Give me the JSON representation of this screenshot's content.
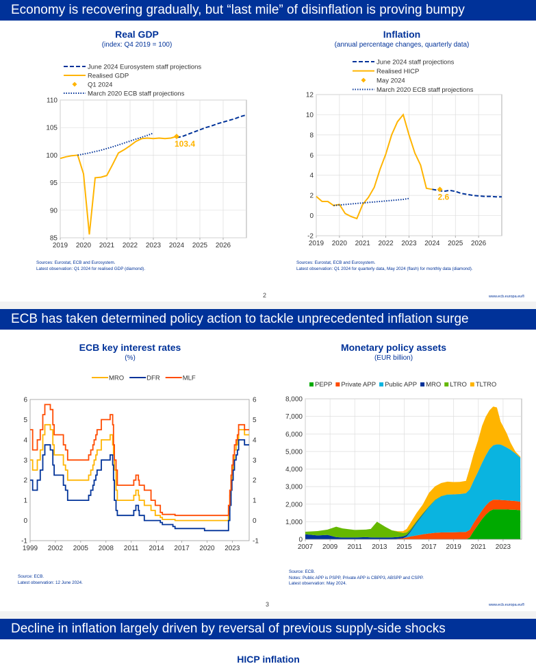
{
  "slides": [
    {
      "title": "Economy is recovering gradually, but “last mile” of disinflation is proving bumpy",
      "page": "2",
      "url": "www.ecb.europa.eu®"
    },
    {
      "title": "ECB has taken determined policy action to tackle unprecedented inflation surge",
      "page": "3",
      "url": "www.ecb.europa.eu®"
    },
    {
      "title": "Decline in inflation largely driven by reversal of previous supply-side shocks"
    }
  ],
  "charts": {
    "gdp": {
      "title": "Real GDP",
      "subtitle": "(index: Q4 2019 = 100)",
      "notes": [
        "Sources: Eurostat, ECB and Eurosystem.",
        "Latest observation: Q1 2024 for realised GDP (diamond)."
      ]
    },
    "infl": {
      "title": "Inflation",
      "subtitle": "(annual percentage changes, quarterly data)",
      "notes": [
        "Sources: Eurostat, ECB and Eurosystem.",
        "Latest observation: Q1 2024 for quarterly data, May 2024 (flash) for monthly data (diamond)."
      ]
    },
    "rates": {
      "title": "ECB key interest rates",
      "subtitle": "(%)",
      "notes": [
        "Source: ECB.",
        "Latest observation: 12 June 2024."
      ]
    },
    "assets": {
      "title": "Monetary policy assets",
      "subtitle": "(EUR billion)",
      "notes": [
        "Source: ECB.",
        "Notes: Public APP is PSPP, Private APP is CBPP3, ABSPP and CSPP.",
        "Latest observation: May 2024."
      ]
    },
    "hicp": {
      "title": "HICP inflation"
    }
  },
  "chart_data": [
    {
      "id": "gdp",
      "type": "line",
      "title": "Real GDP",
      "subtitle": "(index: Q4 2019 = 100)",
      "ylim": [
        85,
        110
      ],
      "yticks": [
        85,
        90,
        95,
        100,
        105,
        110
      ],
      "xlim": [
        2019,
        2027
      ],
      "xticks": [
        2019,
        2020,
        2021,
        2022,
        2023,
        2024,
        2025,
        2026
      ],
      "grid": true,
      "legend_position": "top-left",
      "series": [
        {
          "name": "June 2024 Eurosystem staff projections",
          "color": "#003299",
          "style": "dashed",
          "x": [
            2024.0,
            2024.25,
            2024.5,
            2024.75,
            2025.0,
            2025.25,
            2025.5,
            2025.75,
            2026.0,
            2026.25,
            2026.5,
            2026.75,
            2027.0
          ],
          "y": [
            103.2,
            103.4,
            103.8,
            104.2,
            104.6,
            105.0,
            105.3,
            105.7,
            106.0,
            106.3,
            106.6,
            107.0,
            107.3
          ]
        },
        {
          "name": "Realised GDP",
          "color": "#ffb400",
          "style": "solid",
          "x": [
            2019.0,
            2019.25,
            2019.5,
            2019.75,
            2020.0,
            2020.25,
            2020.5,
            2020.75,
            2021.0,
            2021.25,
            2021.5,
            2021.75,
            2022.0,
            2022.25,
            2022.5,
            2022.75,
            2023.0,
            2023.25,
            2023.5,
            2023.75,
            2024.0
          ],
          "y": [
            99.4,
            99.7,
            99.9,
            100.0,
            96.6,
            85.6,
            95.9,
            96.0,
            96.3,
            98.3,
            100.4,
            101.0,
            101.7,
            102.5,
            103.0,
            103.1,
            103.0,
            103.1,
            103.0,
            103.1,
            103.4
          ]
        },
        {
          "name": "Q1 2024",
          "color": "#ffb400",
          "style": "diamond",
          "x": [
            2024.0
          ],
          "y": [
            103.4
          ],
          "label": "103.4"
        },
        {
          "name": "March 2020 ECB staff projections",
          "color": "#003299",
          "style": "dotted",
          "x": [
            2019.75,
            2020.25,
            2020.75,
            2021.25,
            2021.75,
            2022.25,
            2022.75,
            2023.0
          ],
          "y": [
            100.0,
            100.4,
            100.9,
            101.5,
            102.2,
            102.9,
            103.6,
            104.0
          ]
        }
      ]
    },
    {
      "id": "infl",
      "type": "line",
      "title": "Inflation",
      "subtitle": "(annual percentage changes, quarterly data)",
      "ylim": [
        -2,
        12
      ],
      "yticks": [
        -2,
        0,
        2,
        4,
        6,
        8,
        10,
        12
      ],
      "xlim": [
        2019,
        2027
      ],
      "xticks": [
        2019,
        2020,
        2021,
        2022,
        2023,
        2024,
        2025,
        2026
      ],
      "grid": true,
      "legend_position": "top",
      "series": [
        {
          "name": "June 2024 staff projections",
          "color": "#003299",
          "style": "dashed",
          "x": [
            2024.0,
            2024.25,
            2024.5,
            2024.75,
            2025.0,
            2025.25,
            2025.5,
            2025.75,
            2026.0,
            2026.25,
            2026.5,
            2026.75,
            2027.0
          ],
          "y": [
            2.6,
            2.5,
            2.4,
            2.5,
            2.4,
            2.2,
            2.1,
            2.0,
            1.95,
            1.9,
            1.9,
            1.85,
            1.85
          ]
        },
        {
          "name": "Realised HICP",
          "color": "#ffb400",
          "style": "solid",
          "x": [
            2019.0,
            2019.25,
            2019.5,
            2019.75,
            2020.0,
            2020.25,
            2020.5,
            2020.75,
            2021.0,
            2021.25,
            2021.5,
            2021.75,
            2022.0,
            2022.25,
            2022.5,
            2022.75,
            2023.0,
            2023.25,
            2023.5,
            2023.75,
            2024.0
          ],
          "y": [
            1.9,
            1.4,
            1.4,
            1.0,
            1.1,
            0.2,
            -0.1,
            -0.3,
            1.1,
            1.8,
            2.8,
            4.6,
            6.1,
            8.0,
            9.3,
            10.0,
            8.0,
            6.2,
            5.0,
            2.7,
            2.6
          ]
        },
        {
          "name": "May 2024",
          "color": "#ffb400",
          "style": "diamond",
          "x": [
            2024.33
          ],
          "y": [
            2.6
          ],
          "label": "2.6"
        },
        {
          "name": "March 2020 ECB staff projections",
          "color": "#003299",
          "style": "dotted",
          "x": [
            2019.75,
            2020.25,
            2020.75,
            2021.25,
            2021.75,
            2022.25,
            2022.75,
            2023.0
          ],
          "y": [
            1.0,
            1.1,
            1.2,
            1.3,
            1.4,
            1.5,
            1.6,
            1.7
          ]
        }
      ]
    },
    {
      "id": "rates",
      "type": "line",
      "title": "ECB key interest rates",
      "subtitle": "(%)",
      "ylim": [
        -1,
        6
      ],
      "yticks": [
        -1,
        0,
        1,
        2,
        3,
        4,
        5,
        6
      ],
      "xlim": [
        1999,
        2025
      ],
      "xticks": [
        1999,
        2002,
        2005,
        2008,
        2011,
        2014,
        2017,
        2020,
        2023
      ],
      "grid": false,
      "legend_position": "top",
      "series": [
        {
          "name": "MRO",
          "color": "#ffb400",
          "style": "step",
          "x": [
            1999.0,
            1999.3,
            1999.85,
            2000.2,
            2000.5,
            2000.75,
            2001.4,
            2001.7,
            2001.85,
            2002.95,
            2003.2,
            2003.45,
            2005.95,
            2006.2,
            2006.45,
            2006.6,
            2006.8,
            2006.95,
            2007.45,
            2008.5,
            2008.8,
            2008.9,
            2009.0,
            2009.2,
            2009.35,
            2011.3,
            2011.55,
            2011.85,
            2011.95,
            2012.55,
            2013.35,
            2013.85,
            2014.45,
            2014.7,
            2016.2,
            2022.55,
            2022.7,
            2022.85,
            2022.95,
            2023.1,
            2023.25,
            2023.45,
            2023.6,
            2023.75,
            2024.45,
            2025.0
          ],
          "y": [
            3.0,
            2.5,
            3.0,
            3.5,
            4.25,
            4.75,
            4.5,
            3.75,
            3.25,
            2.75,
            2.5,
            2.0,
            2.25,
            2.5,
            2.75,
            3.0,
            3.25,
            3.5,
            4.0,
            4.25,
            3.75,
            3.25,
            2.5,
            1.5,
            1.0,
            1.25,
            1.5,
            1.25,
            1.0,
            0.75,
            0.5,
            0.25,
            0.15,
            0.05,
            0.0,
            0.5,
            1.25,
            2.0,
            2.5,
            3.0,
            3.5,
            3.75,
            4.0,
            4.5,
            4.25,
            4.25
          ]
        },
        {
          "name": "DFR",
          "color": "#003299",
          "style": "step",
          "x": [
            1999.0,
            1999.3,
            1999.85,
            2000.2,
            2000.5,
            2000.75,
            2001.4,
            2001.7,
            2001.85,
            2002.95,
            2003.2,
            2003.45,
            2005.95,
            2006.2,
            2006.45,
            2006.6,
            2006.8,
            2006.95,
            2007.45,
            2008.5,
            2008.8,
            2008.9,
            2009.0,
            2009.2,
            2009.35,
            2011.3,
            2011.55,
            2011.85,
            2011.95,
            2012.55,
            2014.45,
            2014.7,
            2015.95,
            2016.2,
            2019.7,
            2022.55,
            2022.7,
            2022.85,
            2022.95,
            2023.1,
            2023.25,
            2023.45,
            2023.6,
            2023.75,
            2024.45,
            2025.0
          ],
          "y": [
            2.0,
            1.5,
            2.0,
            2.5,
            3.25,
            3.75,
            3.5,
            2.75,
            2.25,
            1.75,
            1.5,
            1.0,
            1.25,
            1.5,
            1.75,
            2.0,
            2.25,
            2.5,
            3.0,
            3.25,
            2.75,
            2.0,
            1.0,
            0.5,
            0.25,
            0.5,
            0.75,
            0.5,
            0.25,
            0.0,
            -0.1,
            -0.2,
            -0.3,
            -0.4,
            -0.5,
            0.0,
            0.75,
            1.5,
            2.0,
            2.5,
            3.0,
            3.25,
            3.5,
            4.0,
            3.75,
            3.75
          ]
        },
        {
          "name": "MLF",
          "color": "#ff4b00",
          "style": "step",
          "x": [
            1999.0,
            1999.3,
            1999.85,
            2000.2,
            2000.5,
            2000.75,
            2001.4,
            2001.7,
            2001.85,
            2002.95,
            2003.2,
            2003.45,
            2005.95,
            2006.2,
            2006.45,
            2006.6,
            2006.8,
            2006.95,
            2007.45,
            2008.5,
            2008.8,
            2008.9,
            2009.0,
            2009.2,
            2009.35,
            2011.3,
            2011.55,
            2011.85,
            2011.95,
            2012.55,
            2013.35,
            2013.85,
            2014.45,
            2014.7,
            2016.2,
            2022.55,
            2022.7,
            2022.85,
            2022.95,
            2023.1,
            2023.25,
            2023.45,
            2023.6,
            2023.75,
            2024.45,
            2025.0
          ],
          "y": [
            4.5,
            3.5,
            4.0,
            4.5,
            5.25,
            5.75,
            5.5,
            4.75,
            4.25,
            3.75,
            3.5,
            3.0,
            3.25,
            3.5,
            3.75,
            4.0,
            4.25,
            4.5,
            5.0,
            5.25,
            4.75,
            3.75,
            3.0,
            2.5,
            1.75,
            2.0,
            2.25,
            2.0,
            1.75,
            1.5,
            1.0,
            0.75,
            0.4,
            0.3,
            0.25,
            0.75,
            1.5,
            2.25,
            2.75,
            3.25,
            3.75,
            4.0,
            4.25,
            4.75,
            4.5,
            4.5
          ]
        }
      ]
    },
    {
      "id": "assets",
      "type": "area",
      "title": "Monetary policy assets",
      "subtitle": "(EUR billion)",
      "ylim": [
        0,
        8000
      ],
      "yticks": [
        0,
        1000,
        2000,
        3000,
        4000,
        5000,
        6000,
        7000,
        8000
      ],
      "ytick_labels": [
        "0",
        "1,000",
        "2,000",
        "3,000",
        "4,000",
        "5,000",
        "6,000",
        "7,000",
        "8,000"
      ],
      "xlim": [
        2007,
        2024.5
      ],
      "xticks": [
        2007,
        2009,
        2011,
        2013,
        2015,
        2017,
        2019,
        2021,
        2023
      ],
      "grid": true,
      "legend_position": "top",
      "stacked": true,
      "x": [
        2007.0,
        2008.0,
        2008.8,
        2009.5,
        2010.0,
        2011.0,
        2011.9,
        2012.3,
        2012.8,
        2013.5,
        2014.0,
        2014.5,
        2014.9,
        2015.2,
        2015.5,
        2016.0,
        2016.5,
        2017.0,
        2017.5,
        2018.0,
        2018.5,
        2019.0,
        2019.5,
        2020.0,
        2020.3,
        2020.6,
        2021.0,
        2021.3,
        2021.6,
        2021.9,
        2022.2,
        2022.5,
        2022.8,
        2023.0,
        2023.3,
        2023.6,
        2024.0,
        2024.4
      ],
      "series": [
        {
          "name": "PEPP",
          "color": "#00aa00",
          "values": [
            0,
            0,
            0,
            0,
            0,
            0,
            0,
            0,
            0,
            0,
            0,
            0,
            0,
            0,
            0,
            0,
            0,
            0,
            0,
            0,
            0,
            0,
            0,
            0,
            100,
            450,
            850,
            1150,
            1400,
            1600,
            1700,
            1700,
            1700,
            1700,
            1700,
            1690,
            1680,
            1650
          ]
        },
        {
          "name": "Private APP",
          "color": "#ff4b00",
          "values": [
            0,
            0,
            0,
            0,
            0,
            0,
            0,
            0,
            0,
            0,
            0,
            30,
            60,
            110,
            160,
            220,
            280,
            330,
            370,
            390,
            395,
            400,
            410,
            420,
            440,
            460,
            480,
            500,
            520,
            540,
            550,
            550,
            540,
            530,
            520,
            510,
            500,
            490
          ]
        },
        {
          "name": "Public APP",
          "color": "#0ab4e0",
          "values": [
            0,
            0,
            0,
            0,
            0,
            0,
            0,
            0,
            0,
            0,
            0,
            0,
            0,
            50,
            250,
            700,
            1100,
            1500,
            1850,
            2050,
            2150,
            2150,
            2160,
            2200,
            2300,
            2400,
            2550,
            2700,
            2850,
            3000,
            3100,
            3150,
            3150,
            3100,
            3000,
            2900,
            2700,
            2500
          ]
        },
        {
          "name": "MRO",
          "color": "#003299",
          "values": [
            280,
            220,
            250,
            120,
            100,
            100,
            120,
            110,
            100,
            100,
            110,
            100,
            100,
            80,
            70,
            50,
            40,
            20,
            10,
            5,
            5,
            5,
            5,
            5,
            5,
            5,
            5,
            5,
            5,
            5,
            5,
            5,
            5,
            5,
            5,
            5,
            5,
            5
          ]
        },
        {
          "name": "LTRO",
          "color": "#65b800",
          "values": [
            150,
            250,
            300,
            600,
            520,
            430,
            430,
            480,
            900,
            600,
            400,
            300,
            200,
            150,
            100,
            70,
            50,
            40,
            30,
            20,
            10,
            5,
            5,
            5,
            5,
            5,
            5,
            5,
            5,
            5,
            5,
            5,
            5,
            5,
            5,
            5,
            5,
            5
          ]
        },
        {
          "name": "TLTRO",
          "color": "#ffb400",
          "values": [
            0,
            0,
            0,
            0,
            0,
            0,
            0,
            0,
            0,
            0,
            0,
            30,
            100,
            200,
            350,
            450,
            500,
            750,
            760,
            740,
            720,
            700,
            690,
            700,
            1200,
            1500,
            1800,
            2100,
            2200,
            2200,
            2200,
            2100,
            1300,
            1100,
            800,
            400,
            100,
            50
          ]
        }
      ]
    },
    {
      "id": "hicp",
      "type": "line",
      "title": "HICP inflation"
    }
  ]
}
